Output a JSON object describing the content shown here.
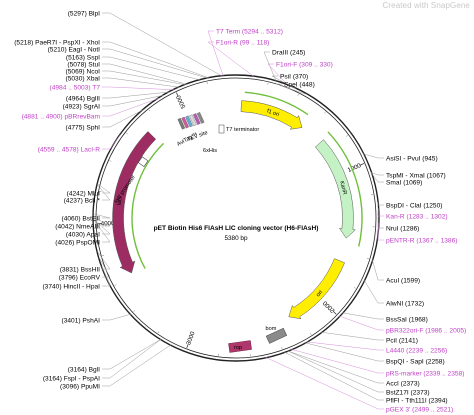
{
  "credit": "Created with SnapGene",
  "map": {
    "title": "pET Biotin His6 FlAsH LIC cloning vector (H6-FlAsH)",
    "length_label": "5380 bp",
    "total_bp": 5380
  },
  "ticks": [
    {
      "label": "1000",
      "pos": 1000
    },
    {
      "label": "2000",
      "pos": 2000
    },
    {
      "label": "3000",
      "pos": 3000
    },
    {
      "label": "4000",
      "pos": 4000
    },
    {
      "label": "5000",
      "pos": 5000
    }
  ],
  "features": [
    {
      "name": "f1 ori",
      "type": "arrow",
      "color": "#ffee00",
      "start": 40,
      "end": 540,
      "dir": 1
    },
    {
      "name": "KanR",
      "type": "arrow",
      "color": "#c4f2c4",
      "start": 720,
      "end": 1500,
      "dir": 1
    },
    {
      "name": "ori",
      "type": "arrow",
      "color": "#ffee00",
      "start": 1680,
      "end": 2270,
      "dir": 1
    },
    {
      "name": "rop",
      "type": "box",
      "color": "#b0376b"
    },
    {
      "name": "bom",
      "type": "box",
      "color": "#8a8a8a"
    },
    {
      "name": "lacI",
      "type": "arrow",
      "color": "#9c2c62",
      "start": 3620,
      "end": 4700,
      "dir": -1
    },
    {
      "name": "lacI promoter",
      "type": "box",
      "color": "#ffffff"
    },
    {
      "name": "T7 terminator",
      "type": "label"
    },
    {
      "name": "6xHis",
      "type": "label"
    },
    {
      "name": "AviTag™",
      "type": "label"
    },
    {
      "name": "TEV site",
      "type": "label"
    }
  ],
  "left_sites": [
    {
      "label": "(5297)  BlpI"
    },
    {
      "label": "(5218)  PaeR7I - PspXI - XhoI"
    },
    {
      "label": "(5210)  EagI - NotI"
    },
    {
      "label": "(5163)  SspI"
    },
    {
      "label": "(5078)  StuI"
    },
    {
      "label": "(5069)  NcoI"
    },
    {
      "label": "(5030)  XbaI"
    },
    {
      "label": "(4984 .. 5003)  T7",
      "primer": true
    },
    {
      "label": "(4964)  BglII"
    },
    {
      "label": "(4923)  SgrAI"
    },
    {
      "label": "(4881 .. 4900)  pBRrevBam",
      "primer": true
    },
    {
      "label": "(4775)  SphI"
    },
    {
      "label": "(4559 .. 4578)  LacI-R",
      "primer": true
    },
    {
      "label": "(4242)  MluI"
    },
    {
      "label": "(4237)  BclI *"
    },
    {
      "label": "(4060)  BstEII"
    },
    {
      "label": "(4042)  NmeAIII"
    },
    {
      "label": "(4030)  ApaI"
    },
    {
      "label": "(4026)  PspOMI"
    },
    {
      "label": "(3831)  BssHII"
    },
    {
      "label": "(3796)  EcoRV"
    },
    {
      "label": "(3740)  HincII - HpaI"
    },
    {
      "label": "(3401)  PshAI"
    },
    {
      "label": "(3164)  BglI"
    },
    {
      "label": "(3164)  FspI - PspAI"
    },
    {
      "label": "(3096)  PpuMI"
    }
  ],
  "right_sites": [
    {
      "label": "T7 Term  (5294 .. 5312)",
      "primer": true
    },
    {
      "label": "F1ori-R  (99 .. 118)",
      "primer": true
    },
    {
      "label": "DraIII  (245)"
    },
    {
      "label": "F1ori-F  (309 .. 330)",
      "primer": true
    },
    {
      "label": "PsiI  (370)"
    },
    {
      "label": "SpeI  (448)"
    },
    {
      "label": "AsiSI - PvuI  (945)"
    },
    {
      "label": "TspMI - XmaI  (1067)"
    },
    {
      "label": "SmaI  (1069)"
    },
    {
      "label": "BspDI - ClaI  (1250)"
    },
    {
      "label": "Kan-R  (1283 .. 1302)",
      "primer": true
    },
    {
      "label": "NruI  (1286)"
    },
    {
      "label": "pENTR-R  (1367 .. 1386)",
      "primer": true
    },
    {
      "label": "AcuI  (1599)"
    },
    {
      "label": "AlwNI  (1732)"
    },
    {
      "label": "BssSaI  (1968)"
    },
    {
      "label": "pBR322ori-F  (1986 .. 2005)",
      "primer": true
    },
    {
      "label": "PciI  (2141)"
    },
    {
      "label": "L4440  (2239 .. 2256)",
      "primer": true
    },
    {
      "label": "BspQI - SapI  (2258)"
    },
    {
      "label": "pRS-marker  (2339 .. 2358)",
      "primer": true
    },
    {
      "label": "AccI  (2373)"
    },
    {
      "label": "BstZ17I  (2373)"
    },
    {
      "label": "PflFI - Tth111I  (2394)"
    },
    {
      "label": "pGEX 3'  (2499 .. 2521)",
      "primer": true
    }
  ]
}
